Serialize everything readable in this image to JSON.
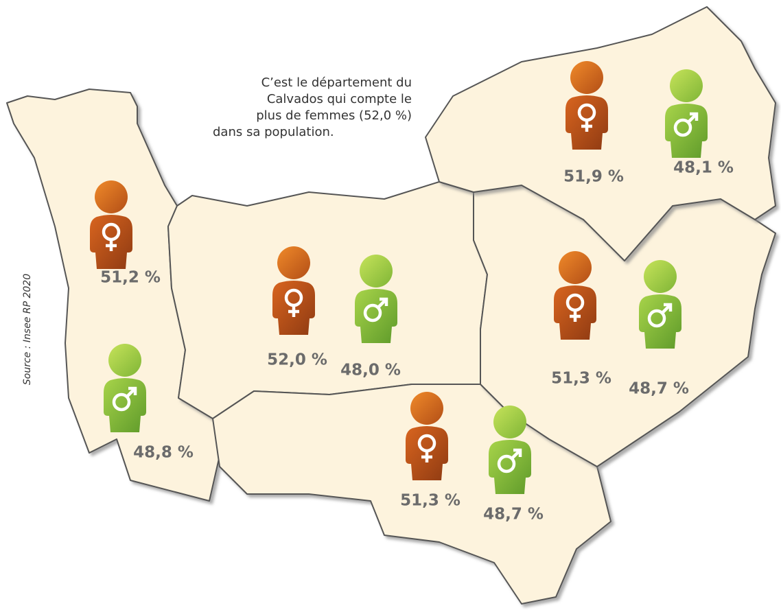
{
  "annotation": [
    "C’est le département du",
    "Calvados qui compte le",
    "plus de femmes (52,0 %)",
    "dans sa population."
  ],
  "source": "Source : Insee RP 2020",
  "regions": [
    {
      "female": "51,2 %",
      "male": "48,8 %"
    },
    {
      "female": "52,0 %",
      "male": "48,0 %"
    },
    {
      "female": "51,3 %",
      "male": "48,7 %"
    },
    {
      "female": "51,3 %",
      "male": "48,7 %"
    },
    {
      "female": "51,9 %",
      "male": "48,1 %"
    }
  ]
}
